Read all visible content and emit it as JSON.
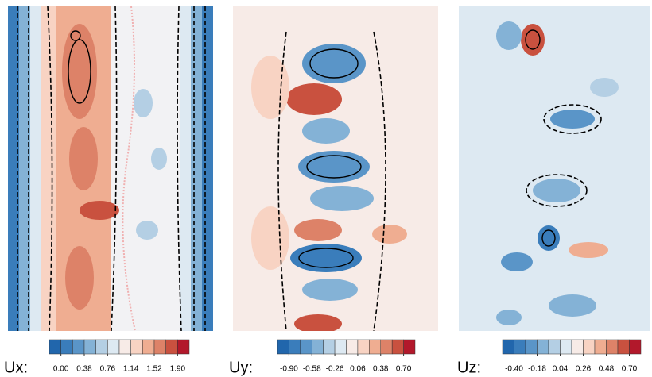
{
  "chart_data": [
    {
      "type": "contour",
      "title": "Ux:",
      "clim": [
        -0.19,
        2.09
      ],
      "ticks": [
        {
          "value": 0,
          "label": "0.00"
        },
        0.38,
        0.76,
        1.14,
        1.52,
        {
          "value": 1.9,
          "label": "1.90"
        }
      ],
      "colors": [
        "#2166ac",
        "#3a7dbb",
        "#5a95c8",
        "#84b2d6",
        "#b4cfe4",
        "#dde9f2",
        "#f7ebe7",
        "#f8d3c3",
        "#efad91",
        "#dd8268",
        "#c9513f",
        "#b2182b"
      ]
    },
    {
      "type": "contour",
      "title": "Uy:",
      "clim": [
        -1.06,
        0.86
      ],
      "ticks": [
        {
          "value": -0.9,
          "label": "-0.90"
        },
        -0.58,
        -0.26,
        0.06,
        0.38,
        {
          "value": 0.7,
          "label": "0.70"
        }
      ],
      "colors": [
        "#2166ac",
        "#3a7dbb",
        "#5a95c8",
        "#84b2d6",
        "#b4cfe4",
        "#dde9f2",
        "#f7ebe7",
        "#f8d3c3",
        "#efad91",
        "#dd8268",
        "#c9513f",
        "#b2182b"
      ]
    },
    {
      "type": "contour",
      "title": "Uz:",
      "clim": [
        -0.51,
        0.81
      ],
      "ticks": [
        {
          "value": -0.4,
          "label": "-0.40"
        },
        -0.18,
        0.04,
        0.26,
        0.48,
        {
          "value": 0.7,
          "label": "0.70"
        }
      ],
      "colors": [
        "#2166ac",
        "#3a7dbb",
        "#5a95c8",
        "#84b2d6",
        "#b4cfe4",
        "#dde9f2",
        "#f7ebe7",
        "#f8d3c3",
        "#efad91",
        "#dd8268",
        "#c9513f",
        "#b2182b"
      ]
    }
  ]
}
